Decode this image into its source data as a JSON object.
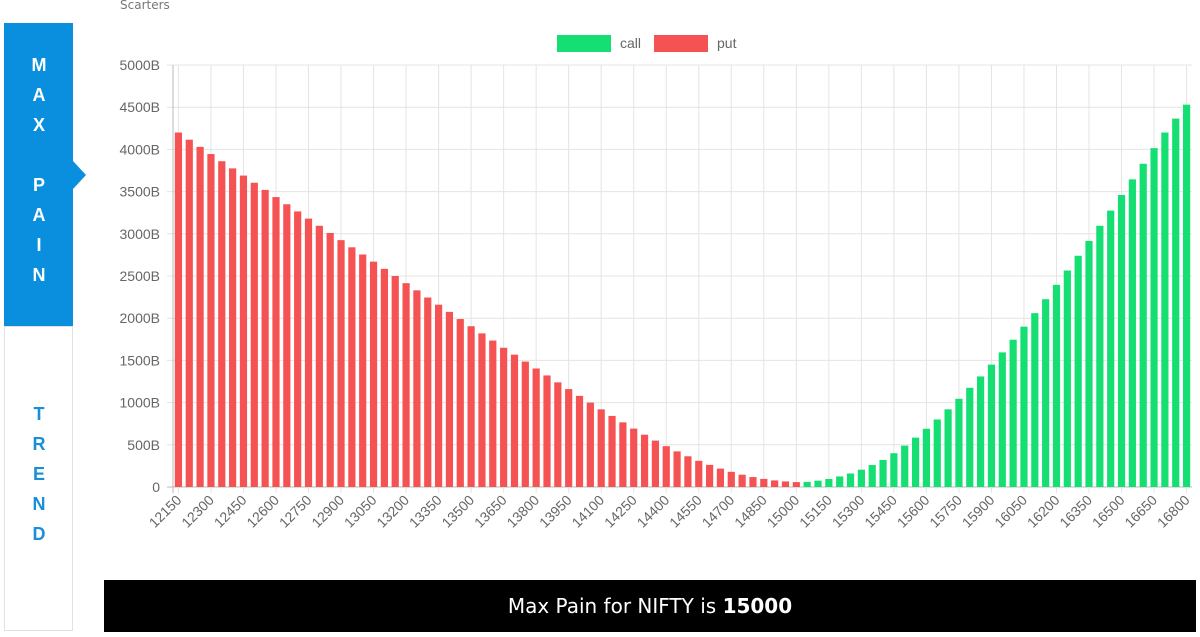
{
  "app": {
    "brand": "Scarters",
    "nav": [
      "MAX PAIN",
      "TREND"
    ]
  },
  "chart_data": {
    "type": "bar",
    "stacked": true,
    "grid": true,
    "legend": "top",
    "categories": [
      "12150",
      null,
      null,
      "12300",
      null,
      null,
      "12450",
      null,
      null,
      "12600",
      null,
      null,
      "12750",
      null,
      null,
      "12900",
      null,
      null,
      "13050",
      null,
      null,
      "13200",
      null,
      null,
      "13350",
      null,
      null,
      "13500",
      null,
      null,
      "13650",
      null,
      null,
      "13800",
      null,
      null,
      "13950",
      null,
      null,
      "14100",
      null,
      null,
      "14250",
      null,
      null,
      "14400",
      null,
      null,
      "14550",
      null,
      null,
      "14700",
      null,
      null,
      "14850",
      null,
      null,
      "15000",
      null,
      null,
      "15150",
      null,
      null,
      "15300",
      null,
      null,
      "15450",
      null,
      null,
      "15600",
      null,
      null,
      "15750",
      null,
      null,
      "15900",
      null,
      null,
      "16050",
      null,
      null,
      "16200",
      null,
      null,
      "16350",
      null,
      null,
      "16500",
      null,
      null,
      "16650",
      null,
      null,
      "16800"
    ],
    "series": [
      {
        "name": "call",
        "color": "#15df73",
        "values": [
          0,
          0,
          0,
          0,
          0,
          0,
          0,
          0,
          0,
          0,
          0,
          0,
          0,
          0,
          0,
          0,
          0,
          0,
          0,
          0,
          0,
          0,
          0,
          0,
          0,
          0,
          0,
          0,
          0,
          0,
          0,
          0,
          0,
          0,
          0,
          0,
          0,
          0,
          0,
          0,
          0,
          0,
          0,
          0,
          0,
          0,
          0,
          0,
          0,
          0,
          0,
          0,
          0,
          0,
          0,
          0,
          0,
          0,
          60,
          75,
          95,
          125,
          160,
          205,
          260,
          320,
          400,
          490,
          585,
          690,
          800,
          920,
          1045,
          1175,
          1310,
          1450,
          1595,
          1745,
          1900,
          2060,
          2225,
          2395,
          2565,
          2740,
          2915,
          3095,
          3275,
          3460,
          3645,
          3830,
          4015,
          4200,
          4365,
          4530
        ]
      },
      {
        "name": "put",
        "color": "#f55353",
        "values": [
          4200,
          4115,
          4030,
          3945,
          3860,
          3775,
          3690,
          3605,
          3520,
          3435,
          3350,
          3265,
          3180,
          3095,
          3010,
          2925,
          2840,
          2755,
          2670,
          2585,
          2500,
          2415,
          2330,
          2245,
          2160,
          2075,
          1990,
          1905,
          1820,
          1735,
          1650,
          1568,
          1486,
          1404,
          1322,
          1240,
          1160,
          1080,
          1000,
          920,
          842,
          766,
          692,
          620,
          550,
          484,
          422,
          364,
          310,
          262,
          218,
          180,
          146,
          118,
          96,
          78,
          66,
          58,
          0,
          0,
          0,
          0,
          0,
          0,
          0,
          0,
          0,
          0,
          0,
          0,
          0,
          0,
          0,
          0,
          0,
          0,
          0,
          0,
          0,
          0,
          0,
          0,
          0,
          0,
          0,
          0,
          0,
          0,
          0,
          0,
          0,
          0,
          0,
          0
        ]
      }
    ],
    "ylim": [
      0,
      5000
    ],
    "yticks": [
      0,
      {
        "value": 500,
        "label": "500B"
      },
      {
        "value": 1000,
        "label": "1000B"
      },
      {
        "value": 1500,
        "label": "1500B"
      },
      {
        "value": 2000,
        "label": "2000B"
      },
      {
        "value": 2500,
        "label": "2500B"
      },
      {
        "value": 3000,
        "label": "3000B"
      },
      {
        "value": 3500,
        "label": "3500B"
      },
      {
        "value": 4000,
        "label": "4000B"
      },
      {
        "value": 4500,
        "label": "4500B"
      },
      {
        "value": 5000,
        "label": "5000B"
      }
    ]
  },
  "footer": {
    "text": "Max Pain for NIFTY is",
    "value": 15000
  }
}
